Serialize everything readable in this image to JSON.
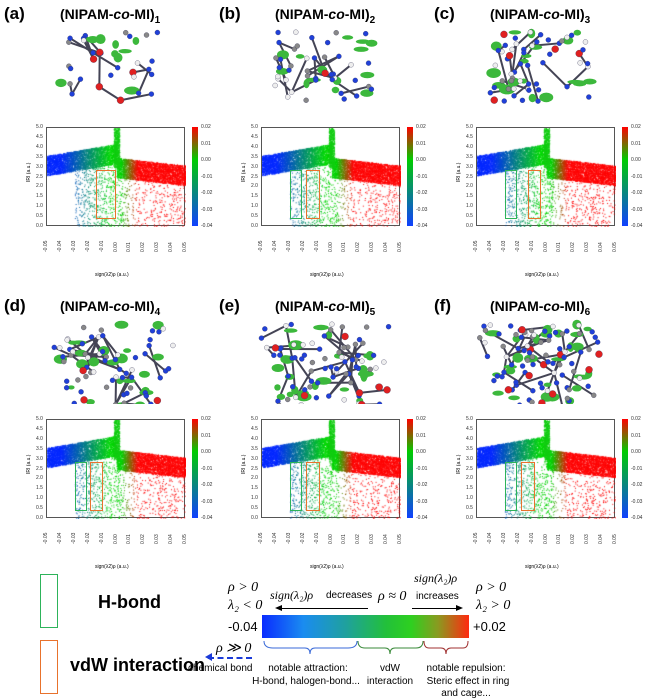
{
  "panels": [
    {
      "label": "(a)",
      "title_pre": "(NIPAM-",
      "title_it": "co",
      "title_post": "-MI)",
      "sub": "1",
      "boxes": [
        {
          "type": "vdw",
          "x": [
            -0.015,
            0.0
          ],
          "y": [
            0.4,
            2.9
          ]
        }
      ]
    },
    {
      "label": "(b)",
      "title_pre": "(NIPAM-",
      "title_it": "co",
      "title_post": "-MI)",
      "sub": "2",
      "boxes": [
        {
          "type": "hbond",
          "x": [
            -0.03,
            -0.021
          ],
          "y": [
            0.4,
            2.9
          ]
        },
        {
          "type": "vdw",
          "x": [
            -0.018,
            -0.008
          ],
          "y": [
            0.4,
            2.9
          ]
        }
      ]
    },
    {
      "label": "(c)",
      "title_pre": "(NIPAM-",
      "title_it": "co",
      "title_post": "-MI)",
      "sub": "3",
      "boxes": [
        {
          "type": "hbond",
          "x": [
            -0.03,
            -0.021
          ],
          "y": [
            0.4,
            2.9
          ]
        },
        {
          "type": "vdw",
          "x": [
            -0.013,
            -0.004
          ],
          "y": [
            0.4,
            2.9
          ]
        }
      ]
    },
    {
      "label": "(d)",
      "title_pre": "(NIPAM-",
      "title_it": "co",
      "title_post": "-MI)",
      "sub": "4",
      "boxes": [
        {
          "type": "hbond",
          "x": [
            -0.03,
            -0.021
          ],
          "y": [
            0.4,
            2.9
          ]
        },
        {
          "type": "vdw",
          "x": [
            -0.019,
            -0.01
          ],
          "y": [
            0.4,
            2.9
          ]
        }
      ]
    },
    {
      "label": "(e)",
      "title_pre": "(NIPAM-",
      "title_it": "co",
      "title_post": "-MI)",
      "sub": "5",
      "boxes": [
        {
          "type": "hbond",
          "x": [
            -0.03,
            -0.021
          ],
          "y": [
            0.4,
            2.9
          ]
        },
        {
          "type": "vdw",
          "x": [
            -0.018,
            -0.008
          ],
          "y": [
            0.4,
            2.9
          ]
        }
      ]
    },
    {
      "label": "(f)",
      "title_pre": "(NIPAM-",
      "title_it": "co",
      "title_post": "-MI)",
      "sub": "6",
      "boxes": [
        {
          "type": "hbond",
          "x": [
            -0.03,
            -0.021
          ],
          "y": [
            0.4,
            2.9
          ]
        },
        {
          "type": "vdw",
          "x": [
            -0.018,
            -0.008
          ],
          "y": [
            0.4,
            2.9
          ]
        }
      ]
    }
  ],
  "chart_data": {
    "type": "scatter",
    "xlabel": "sign(λ2)ρ (a.u.)",
    "ylabel": "IRI (a.u.)",
    "xlim": [
      -0.05,
      0.05
    ],
    "ylim": [
      0,
      5
    ],
    "xticks": [
      "-0.05",
      "-0.04",
      "-0.03",
      "-0.02",
      "-0.01",
      "0.00",
      "0.01",
      "0.02",
      "0.03",
      "0.04",
      "0.05"
    ],
    "yticks": [
      "5.0",
      "4.5",
      "4.0",
      "3.5",
      "3.0",
      "2.5",
      "2.0",
      "1.5",
      "1.0",
      "0.5",
      "0.0"
    ],
    "colorbar": {
      "range": [
        -0.04,
        0.02
      ],
      "ticks": [
        "0.02",
        "0.01",
        "0.00",
        "-0.01",
        "-0.02",
        "-0.03",
        "-0.04"
      ]
    }
  },
  "colors": {
    "hbond": "#2db35a",
    "vdw": "#e8722c"
  },
  "legend": {
    "hbond": "H-bond",
    "vdw": "vdW interaction",
    "rho_pos_left": "ρ > 0",
    "lam_neg": "λ₂ < 0",
    "decreases_math": "sign(λ₂)ρ",
    "decreases": "decreases",
    "rho_zero": "ρ ≈ 0",
    "increases_math": "sign(λ₂)ρ",
    "increases": "increases",
    "rho_pos_right": "ρ > 0",
    "lam_pos": "λ₂ > 0",
    "min": "-0.04",
    "max": "+0.02",
    "rho_gg": "ρ ≫ 0",
    "chem": "chemical bond",
    "attr1": "notable attraction:",
    "attr2": "H-bond, halogen-bond...",
    "vdw1": "vdW",
    "vdw2": "interaction",
    "rep1": "notable repulsion:",
    "rep2": "Steric effect in ring",
    "rep3": "and cage..."
  }
}
